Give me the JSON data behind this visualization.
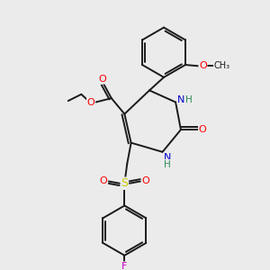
{
  "bg_color": "#ebebeb",
  "bond_color": "#1a1a1a",
  "atom_colors": {
    "O": "#ff0000",
    "N": "#0000cc",
    "S": "#cccc00",
    "F": "#cc00cc",
    "H": "#2e8b57",
    "C": "#1a1a1a"
  },
  "figsize": [
    3.0,
    3.0
  ],
  "dpi": 100
}
